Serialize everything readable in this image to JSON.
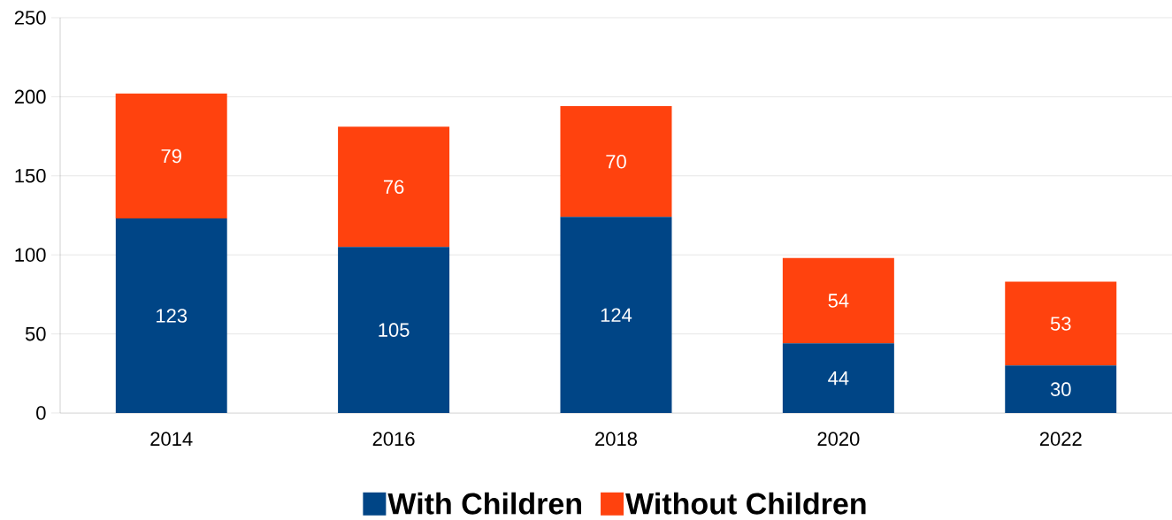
{
  "chart_data": {
    "type": "bar",
    "stacked": true,
    "categories": [
      "2014",
      "2016",
      "2018",
      "2020",
      "2022"
    ],
    "series": [
      {
        "name": "With Children",
        "color": "#004586",
        "values": [
          123,
          105,
          124,
          44,
          30
        ]
      },
      {
        "name": "Without Children",
        "color": "#ff420e",
        "values": [
          79,
          76,
          70,
          54,
          53
        ]
      }
    ],
    "ylim": [
      0,
      250
    ],
    "yticks": [
      0,
      50,
      100,
      150,
      200,
      250
    ],
    "grid": "y",
    "legend": "bottom",
    "data_labels": true
  }
}
